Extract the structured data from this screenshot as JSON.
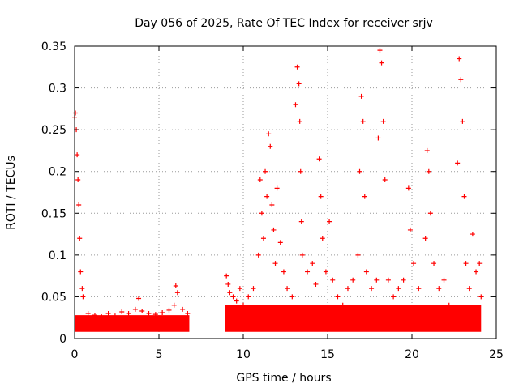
{
  "chart_data": {
    "type": "scatter",
    "title": "Day 056 of 2025, Rate Of TEC Index for receiver srjv",
    "xlabel": "GPS time / hours",
    "ylabel": "ROTI / TECUs",
    "xlim": [
      0,
      25
    ],
    "ylim": [
      0,
      0.35
    ],
    "x_ticks": [
      "0",
      "5",
      "10",
      "15",
      "20",
      "25"
    ],
    "y_ticks": [
      "0",
      "0.05",
      "0.1",
      "0.15",
      "0.2",
      "0.25",
      "0.3",
      "0.35"
    ],
    "grid": true,
    "marker": "+",
    "color": "#ff0000",
    "series": [
      {
        "name": "",
        "points": [
          [
            0.0,
            0.265
          ],
          [
            0.05,
            0.27
          ],
          [
            0.1,
            0.25
          ],
          [
            0.15,
            0.22
          ],
          [
            0.2,
            0.19
          ],
          [
            0.25,
            0.16
          ],
          [
            0.3,
            0.12
          ],
          [
            0.35,
            0.08
          ],
          [
            0.45,
            0.06
          ],
          [
            0.5,
            0.05
          ],
          [
            0.8,
            0.03
          ],
          [
            1.2,
            0.028
          ],
          [
            1.6,
            0.026
          ],
          [
            2.0,
            0.03
          ],
          [
            2.4,
            0.027
          ],
          [
            2.8,
            0.032
          ],
          [
            3.2,
            0.03
          ],
          [
            3.6,
            0.035
          ],
          [
            3.8,
            0.048
          ],
          [
            4.0,
            0.033
          ],
          [
            4.4,
            0.03
          ],
          [
            4.8,
            0.029
          ],
          [
            5.2,
            0.031
          ],
          [
            5.6,
            0.034
          ],
          [
            5.9,
            0.04
          ],
          [
            6.0,
            0.063
          ],
          [
            6.1,
            0.055
          ],
          [
            6.4,
            0.035
          ],
          [
            6.7,
            0.03
          ],
          [
            9.0,
            0.075
          ],
          [
            9.1,
            0.065
          ],
          [
            9.2,
            0.055
          ],
          [
            9.4,
            0.05
          ],
          [
            9.6,
            0.045
          ],
          [
            9.8,
            0.06
          ],
          [
            10.0,
            0.04
          ],
          [
            10.3,
            0.05
          ],
          [
            10.6,
            0.06
          ],
          [
            10.9,
            0.1
          ],
          [
            11.0,
            0.19
          ],
          [
            11.1,
            0.15
          ],
          [
            11.2,
            0.12
          ],
          [
            11.3,
            0.2
          ],
          [
            11.4,
            0.17
          ],
          [
            11.5,
            0.245
          ],
          [
            11.6,
            0.23
          ],
          [
            11.7,
            0.16
          ],
          [
            11.8,
            0.13
          ],
          [
            11.9,
            0.09
          ],
          [
            12.0,
            0.18
          ],
          [
            12.2,
            0.115
          ],
          [
            12.4,
            0.08
          ],
          [
            12.6,
            0.06
          ],
          [
            12.9,
            0.05
          ],
          [
            13.1,
            0.28
          ],
          [
            13.2,
            0.325
          ],
          [
            13.3,
            0.305
          ],
          [
            13.35,
            0.26
          ],
          [
            13.4,
            0.2
          ],
          [
            13.45,
            0.14
          ],
          [
            13.5,
            0.1
          ],
          [
            13.8,
            0.08
          ],
          [
            14.1,
            0.09
          ],
          [
            14.3,
            0.065
          ],
          [
            14.5,
            0.215
          ],
          [
            14.6,
            0.17
          ],
          [
            14.7,
            0.12
          ],
          [
            14.9,
            0.08
          ],
          [
            15.1,
            0.14
          ],
          [
            15.3,
            0.07
          ],
          [
            15.6,
            0.05
          ],
          [
            15.9,
            0.04
          ],
          [
            16.2,
            0.06
          ],
          [
            16.5,
            0.07
          ],
          [
            16.8,
            0.1
          ],
          [
            16.9,
            0.2
          ],
          [
            17.0,
            0.29
          ],
          [
            17.1,
            0.26
          ],
          [
            17.2,
            0.17
          ],
          [
            17.3,
            0.08
          ],
          [
            17.6,
            0.06
          ],
          [
            17.9,
            0.07
          ],
          [
            18.0,
            0.24
          ],
          [
            18.1,
            0.345
          ],
          [
            18.2,
            0.33
          ],
          [
            18.3,
            0.26
          ],
          [
            18.4,
            0.19
          ],
          [
            18.6,
            0.07
          ],
          [
            18.9,
            0.05
          ],
          [
            19.2,
            0.06
          ],
          [
            19.5,
            0.07
          ],
          [
            19.8,
            0.18
          ],
          [
            19.9,
            0.13
          ],
          [
            20.1,
            0.09
          ],
          [
            20.4,
            0.06
          ],
          [
            20.8,
            0.12
          ],
          [
            20.9,
            0.225
          ],
          [
            21.0,
            0.2
          ],
          [
            21.1,
            0.15
          ],
          [
            21.3,
            0.09
          ],
          [
            21.6,
            0.06
          ],
          [
            21.9,
            0.07
          ],
          [
            22.2,
            0.04
          ],
          [
            22.5,
            0.035
          ],
          [
            22.7,
            0.21
          ],
          [
            22.8,
            0.335
          ],
          [
            22.9,
            0.31
          ],
          [
            23.0,
            0.26
          ],
          [
            23.1,
            0.17
          ],
          [
            23.2,
            0.09
          ],
          [
            23.4,
            0.06
          ],
          [
            23.6,
            0.125
          ],
          [
            23.8,
            0.08
          ],
          [
            24.0,
            0.09
          ],
          [
            24.1,
            0.05
          ]
        ]
      }
    ]
  }
}
